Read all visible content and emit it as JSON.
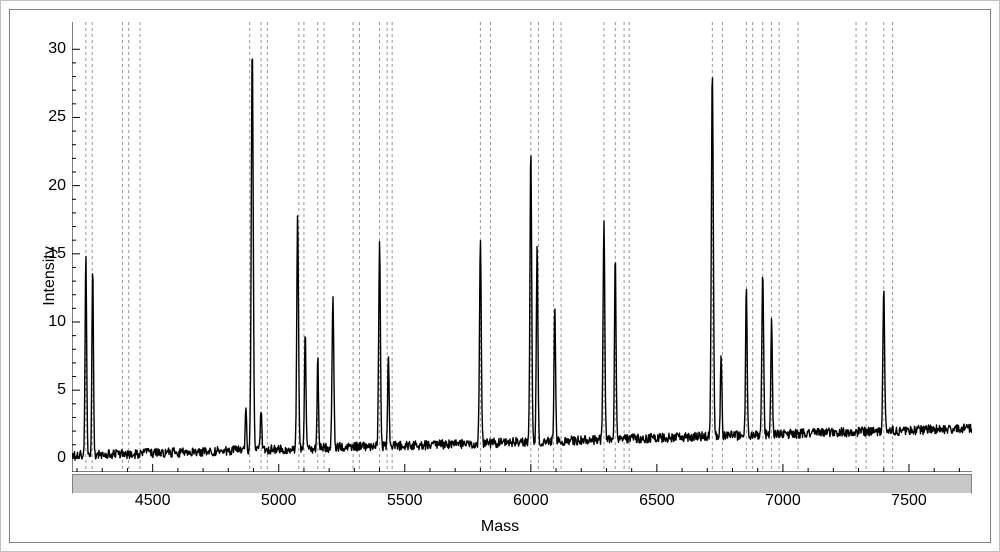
{
  "chart": {
    "type": "line-spectrum",
    "xlabel": "Mass",
    "ylabel": "Intensity",
    "xlim": [
      4180,
      7750
    ],
    "ylim": [
      -1,
      32
    ],
    "xtick_step": 500,
    "xtick_start": 4500,
    "xtick_end": 7500,
    "ytick_step": 5,
    "ytick_start": 0,
    "ytick_end": 30,
    "xtick_minor_count": 4,
    "ytick_minor_count": 4,
    "tick_fontsize": 16,
    "label_fontsize": 16,
    "background_color": "#ffffff",
    "axis_color": "#000000",
    "trace_color": "#000000",
    "trace_width": 1.4,
    "guideline_color": "#404040",
    "guideline_dash": "3,3",
    "guideline_width": 1,
    "frame_border_color": "#808080",
    "outer_border_color": "#c0c0c0",
    "scrollbar_color": "#c8c8c8",
    "guidelines_x": [
      4235,
      4260,
      4380,
      4405,
      4450,
      4885,
      4930,
      4955,
      5080,
      5100,
      5155,
      5180,
      5295,
      5320,
      5400,
      5430,
      5450,
      5800,
      5840,
      6000,
      6030,
      6090,
      6120,
      6290,
      6335,
      6370,
      6390,
      6720,
      6760,
      6855,
      6880,
      6920,
      6955,
      6985,
      7060,
      7290,
      7330,
      7400,
      7435
    ],
    "baseline_noise": 0.7,
    "baseline_shift_start": 0.2,
    "baseline_shift_end": 2.2,
    "peaks": [
      {
        "x": 4235,
        "h": 15.0,
        "w": 7
      },
      {
        "x": 4262,
        "h": 14.0,
        "w": 7
      },
      {
        "x": 4870,
        "h": 3.0,
        "w": 7
      },
      {
        "x": 4895,
        "h": 29.5,
        "w": 9
      },
      {
        "x": 4930,
        "h": 2.8,
        "w": 7
      },
      {
        "x": 5075,
        "h": 17.0,
        "w": 8
      },
      {
        "x": 5105,
        "h": 8.8,
        "w": 7
      },
      {
        "x": 5155,
        "h": 6.8,
        "w": 6
      },
      {
        "x": 5215,
        "h": 11.2,
        "w": 8
      },
      {
        "x": 5400,
        "h": 15.0,
        "w": 8
      },
      {
        "x": 5435,
        "h": 6.5,
        "w": 7
      },
      {
        "x": 5800,
        "h": 14.8,
        "w": 8
      },
      {
        "x": 6000,
        "h": 21.5,
        "w": 8
      },
      {
        "x": 6025,
        "h": 14.5,
        "w": 7
      },
      {
        "x": 6095,
        "h": 10.0,
        "w": 7
      },
      {
        "x": 6290,
        "h": 16.0,
        "w": 8
      },
      {
        "x": 6335,
        "h": 13.5,
        "w": 7
      },
      {
        "x": 6720,
        "h": 27.0,
        "w": 9
      },
      {
        "x": 6755,
        "h": 6.0,
        "w": 7
      },
      {
        "x": 6855,
        "h": 11.0,
        "w": 7
      },
      {
        "x": 6920,
        "h": 12.0,
        "w": 8
      },
      {
        "x": 6955,
        "h": 8.5,
        "w": 7
      },
      {
        "x": 7400,
        "h": 10.5,
        "w": 8
      }
    ]
  }
}
